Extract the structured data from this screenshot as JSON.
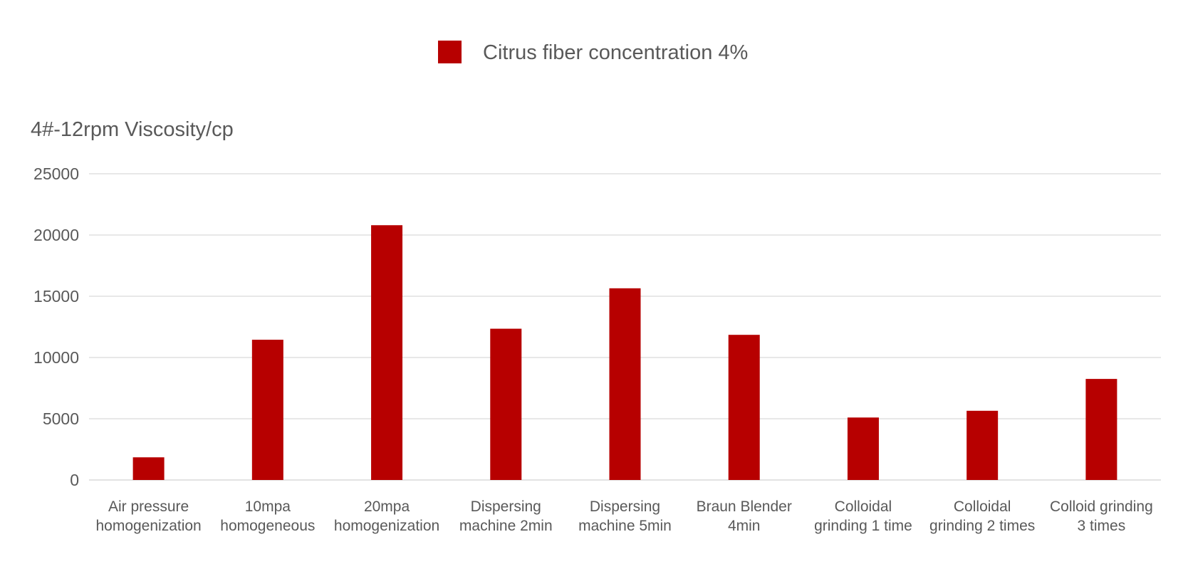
{
  "chart_data": {
    "type": "bar",
    "ylabel": "4#-12rpm Viscosity/cp",
    "ylim": [
      0,
      25000
    ],
    "yticks": [
      0,
      5000,
      10000,
      15000,
      20000,
      25000
    ],
    "grid": true,
    "legend_position": "top",
    "categories": [
      [
        "Air pressure",
        "homogenization"
      ],
      [
        "10mpa",
        "homogeneous"
      ],
      [
        "20mpa",
        "homogenization"
      ],
      [
        "Dispersing",
        "machine 2min"
      ],
      [
        "Dispersing",
        "machine 5min"
      ],
      [
        "Braun Blender",
        "4min"
      ],
      [
        "Colloidal",
        "grinding 1 time"
      ],
      [
        "Colloidal",
        "grinding 2 times"
      ],
      [
        "Colloid grinding",
        "3 times"
      ]
    ],
    "series": [
      {
        "name": "Citrus fiber concentration 4%",
        "color": "#b70000",
        "values": [
          1850,
          11450,
          20800,
          12350,
          15650,
          11850,
          5100,
          5650,
          8250
        ]
      }
    ]
  }
}
